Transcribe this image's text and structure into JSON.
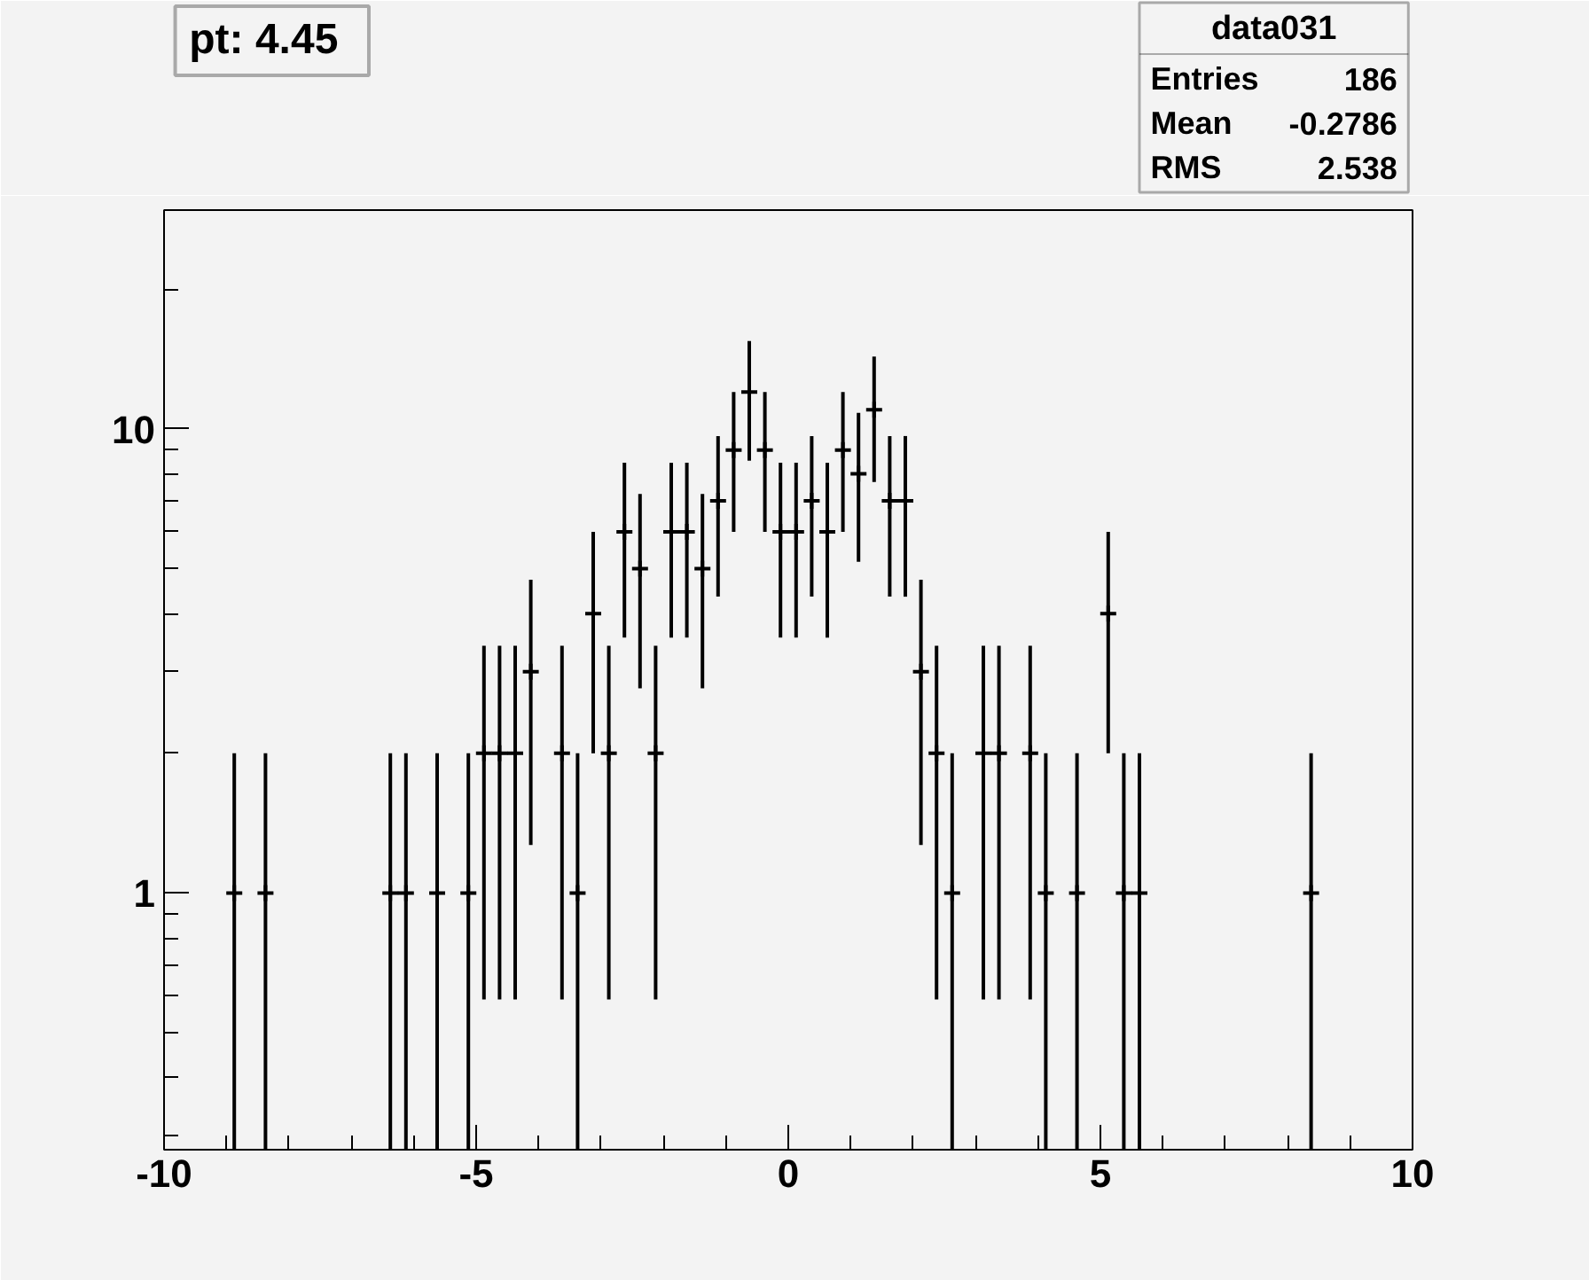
{
  "chart_data": {
    "type": "scatter",
    "title": "pt: 4.45",
    "annotations": [
      "data031",
      "Entries",
      "186",
      "Mean",
      "-0.2786",
      "RMS",
      "2.538"
    ],
    "x": [
      -8.875,
      -8.375,
      -6.375,
      -6.125,
      -5.625,
      -5.125,
      -4.875,
      -4.625,
      -4.375,
      -4.125,
      -3.625,
      -3.375,
      -3.125,
      -2.875,
      -2.625,
      -2.375,
      -2.125,
      -1.875,
      -1.625,
      -1.375,
      -1.125,
      -0.875,
      -0.625,
      -0.375,
      -0.125,
      0.125,
      0.375,
      0.625,
      0.875,
      1.125,
      1.375,
      1.625,
      1.875,
      2.125,
      2.375,
      2.625,
      3.125,
      3.375,
      3.875,
      4.125,
      4.625,
      5.125,
      5.375,
      5.625,
      8.375
    ],
    "values": [
      1,
      1,
      1,
      1,
      1,
      1,
      2,
      2,
      2,
      3,
      2,
      1,
      4,
      2,
      6,
      5,
      2,
      6,
      6,
      5,
      7,
      9,
      12,
      9,
      6,
      6,
      7,
      6,
      9,
      8,
      11,
      7,
      7,
      3,
      2,
      1,
      2,
      2,
      2,
      1,
      1,
      4,
      1,
      1,
      1
    ],
    "errors": [
      [
        0.28,
        2
      ],
      [
        0.28,
        2
      ],
      [
        0.28,
        2
      ],
      [
        0.28,
        2
      ],
      [
        0.28,
        2
      ],
      [
        0.28,
        2
      ],
      1.41,
      1.41,
      1.41,
      1.73,
      1.41,
      [
        0.28,
        2
      ],
      2,
      1.41,
      2.45,
      2.24,
      1.41,
      2.45,
      2.45,
      2.24,
      2.65,
      3,
      3.46,
      3,
      2.45,
      2.45,
      2.65,
      2.45,
      3,
      2.83,
      3.32,
      2.65,
      2.65,
      1.73,
      1.41,
      [
        0.28,
        2
      ],
      1.41,
      1.41,
      1.41,
      [
        0.28,
        2
      ],
      [
        0.28,
        2
      ],
      2,
      [
        0.28,
        2
      ],
      [
        0.28,
        2
      ],
      [
        0.28,
        2
      ]
    ],
    "color": "#000000",
    "log": "y",
    "grid": false,
    "marker": "cross",
    "xlim": [
      -10,
      10
    ],
    "ylim": [
      0.28,
      29.6
    ],
    "xticks": [
      -10,
      {
        "value": -9,
        "label": null
      },
      {
        "value": -8,
        "label": null
      },
      {
        "value": -7,
        "label": null
      },
      {
        "value": -6,
        "label": null
      },
      -5,
      {
        "value": -4,
        "label": null
      },
      {
        "value": -3,
        "label": null
      },
      {
        "value": -2,
        "label": null
      },
      {
        "value": -1,
        "label": null
      },
      0,
      {
        "value": 1,
        "label": null
      },
      {
        "value": 2,
        "label": null
      },
      {
        "value": 3,
        "label": null
      },
      {
        "value": 4,
        "label": null
      },
      5,
      {
        "value": 6,
        "label": null
      },
      {
        "value": 7,
        "label": null
      },
      {
        "value": 8,
        "label": null
      },
      {
        "value": 9,
        "label": null
      },
      10
    ],
    "yticks": [
      {
        "value": 0.3,
        "label": null
      },
      {
        "value": 0.4,
        "label": null
      },
      {
        "value": 0.5,
        "label": null
      },
      {
        "value": 0.6,
        "label": null
      },
      {
        "value": 0.7,
        "label": null
      },
      {
        "value": 0.8,
        "label": null
      },
      {
        "value": 0.9,
        "label": null
      },
      1,
      {
        "value": 2,
        "label": null
      },
      {
        "value": 3,
        "label": null
      },
      {
        "value": 4,
        "label": null
      },
      {
        "value": 5,
        "label": null
      },
      {
        "value": 6,
        "label": null
      },
      {
        "value": 7,
        "label": null
      },
      {
        "value": 8,
        "label": null
      },
      {
        "value": 9,
        "label": null
      },
      10,
      {
        "value": 20,
        "label": null
      }
    ]
  }
}
